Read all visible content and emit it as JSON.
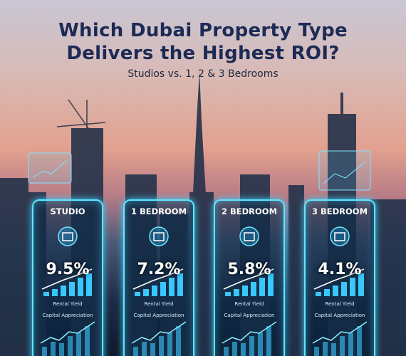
{
  "header": {
    "title": [
      "Which Dubai Property Type",
      "Delivers the Highest ROI?"
    ],
    "subtitle": "Studios vs. 1, 2 & 3 Bedrooms"
  },
  "cards": [
    {
      "label": "STUDIO",
      "value": "9.5%",
      "metric": "Rental Yield",
      "secondary": "Capital Appreciation"
    },
    {
      "label": "1 BEDROOM",
      "value": "7.2%",
      "metric": "Rental Yield",
      "secondary": "Capital Appreciation"
    },
    {
      "label": "2 BEDROOM",
      "value": "5.8%",
      "metric": "Rental Yield",
      "secondary": "Capital Appreciation"
    },
    {
      "label": "3 BEDROOM",
      "value": "4.1%",
      "metric": "Rental Yield",
      "secondary": "Capital Appreciation"
    }
  ]
}
